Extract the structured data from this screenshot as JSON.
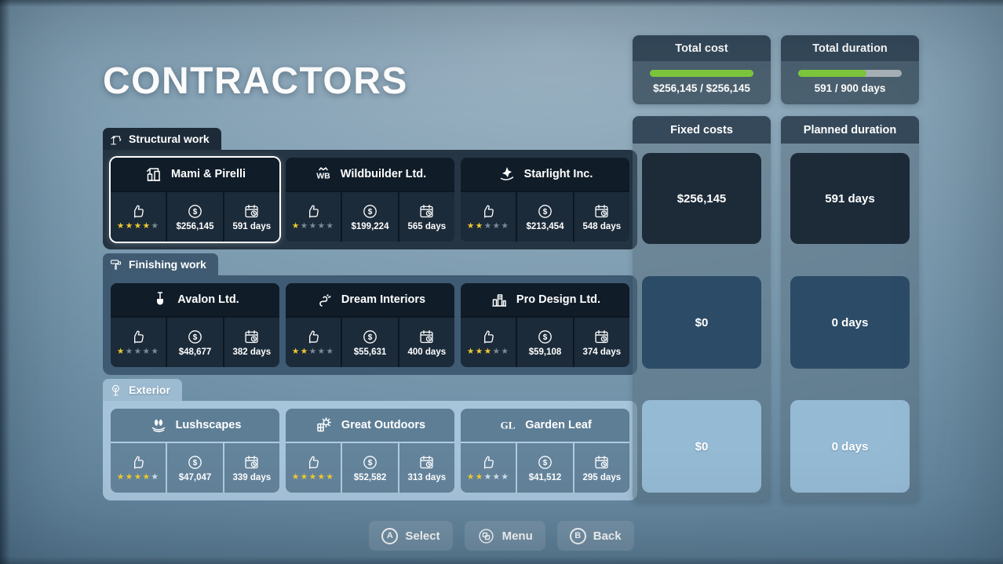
{
  "title": "CONTRACTORS",
  "colors": {
    "progress_green": "#7dc83d",
    "star_yellow": "#f2cb2e",
    "panel_header": "#35495a",
    "selected_border": "#ffffff"
  },
  "sections": [
    {
      "id": "structural-work",
      "label": "Structural work",
      "icon": "crane-icon",
      "theme": "dark",
      "cards": [
        {
          "name": "Mami & Pirelli",
          "logo": "construction-logo-icon",
          "stars": 4,
          "cost": "$256,145",
          "duration": "591 days",
          "selected": true
        },
        {
          "name": "Wildbuilder Ltd.",
          "logo": "wildbuilder-logo-icon",
          "stars": 1,
          "cost": "$199,224",
          "duration": "565 days",
          "selected": false
        },
        {
          "name": "Starlight Inc.",
          "logo": "starlight-logo-icon",
          "stars": 2,
          "cost": "$213,454",
          "duration": "548 days",
          "selected": false
        }
      ]
    },
    {
      "id": "finishing-work",
      "label": "Finishing work",
      "icon": "paint-roller-icon",
      "theme": "mid",
      "cards": [
        {
          "name": "Avalon Ltd.",
          "logo": "shovel-logo-icon",
          "stars": 1,
          "cost": "$48,677",
          "duration": "382 days",
          "selected": false
        },
        {
          "name": "Dream Interiors",
          "logo": "swirl-logo-icon",
          "stars": 2,
          "cost": "$55,631",
          "duration": "400 days",
          "selected": false
        },
        {
          "name": "Pro Design Ltd.",
          "logo": "skyline-logo-icon",
          "stars": 3,
          "cost": "$59,108",
          "duration": "374 days",
          "selected": false
        }
      ]
    },
    {
      "id": "exterior",
      "label": "Exterior",
      "icon": "tree-icon",
      "theme": "light",
      "cards": [
        {
          "name": "Lushscapes",
          "logo": "leaves-logo-icon",
          "stars": 4,
          "cost": "$47,047",
          "duration": "339 days",
          "selected": false
        },
        {
          "name": "Great Outdoors",
          "logo": "sun-window-logo-icon",
          "stars": 5,
          "cost": "$52,582",
          "duration": "313 days",
          "selected": false
        },
        {
          "name": "Garden Leaf",
          "logo": "gl-monogram-logo-icon",
          "stars": 2,
          "cost": "$41,512",
          "duration": "295 days",
          "selected": false
        }
      ]
    }
  ],
  "summary": {
    "total_cost": {
      "title": "Total cost",
      "value": "$256,145 / $256,145",
      "progress": 100
    },
    "total_duration": {
      "title": "Total duration",
      "value": "591 / 900 days",
      "progress": 66
    },
    "fixed_costs": {
      "title": "Fixed costs",
      "rows": [
        {
          "value": "$256,145",
          "tone": "dark"
        },
        {
          "value": "$0",
          "tone": "mid"
        },
        {
          "value": "$0",
          "tone": "light"
        }
      ]
    },
    "planned_duration": {
      "title": "Planned duration",
      "rows": [
        {
          "value": "591 days",
          "tone": "dark"
        },
        {
          "value": "0 days",
          "tone": "mid"
        },
        {
          "value": "0 days",
          "tone": "light"
        }
      ]
    }
  },
  "footer": {
    "buttons": [
      {
        "id": "select",
        "key": "A",
        "icon": "a-button-icon",
        "label": "Select"
      },
      {
        "id": "menu",
        "key": "",
        "icon": "menu-icon",
        "label": "Menu"
      },
      {
        "id": "back",
        "key": "B",
        "icon": "b-button-icon",
        "label": "Back"
      }
    ]
  }
}
